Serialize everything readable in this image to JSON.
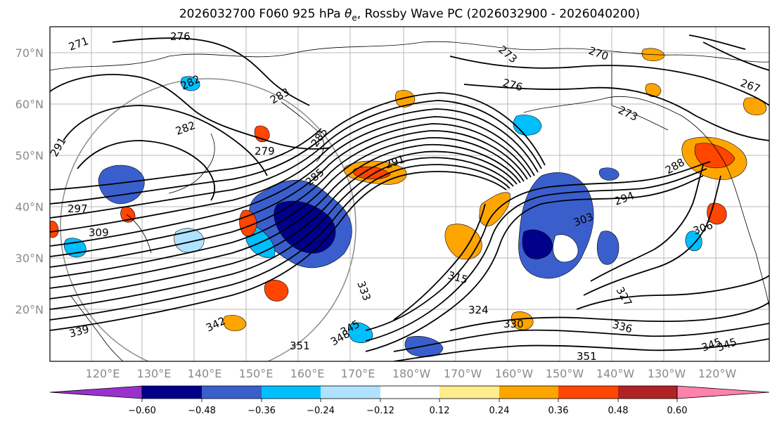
{
  "title": {
    "prefix": "2026032700 F060 925 hPa ",
    "theta": "θ",
    "sub": "e",
    "suffix": ", Rossby Wave PC (2026032900 - 2026040200)"
  },
  "map": {
    "lon_labels": [
      "120°E",
      "130°E",
      "140°E",
      "150°E",
      "160°E",
      "170°E",
      "180°W",
      "170°W",
      "160°W",
      "150°W",
      "140°W",
      "130°W",
      "120°W"
    ],
    "lat_labels": [
      "70°N",
      "60°N",
      "50°N",
      "40°N",
      "30°N",
      "20°N"
    ],
    "contour_labels": [
      "276",
      "271",
      "282",
      "282",
      "283",
      "279",
      "285",
      "285",
      "291",
      "273",
      "270",
      "267",
      "276",
      "273",
      "291",
      "288",
      "294",
      "303",
      "309",
      "297",
      "315",
      "324",
      "330",
      "333",
      "336",
      "327",
      "345",
      "345",
      "348",
      "351",
      "342",
      "339",
      "345",
      "351",
      "306"
    ]
  },
  "colorbar": {
    "tick_labels": [
      "−0.60",
      "−0.48",
      "−0.36",
      "−0.24",
      "−0.12",
      "0.12",
      "0.24",
      "0.36",
      "0.48",
      "0.60"
    ],
    "colors": [
      "#9932cc",
      "#00008b",
      "#3a5fcd",
      "#00bfff",
      "#b0e2ff",
      "#ffffff",
      "#ffec8b",
      "#ffa500",
      "#ff4500",
      "#b22222",
      "#ff82ab"
    ],
    "ticks": [
      -0.6,
      -0.48,
      -0.36,
      -0.24,
      -0.12,
      0.12,
      0.24,
      0.36,
      0.48,
      0.6
    ]
  }
}
